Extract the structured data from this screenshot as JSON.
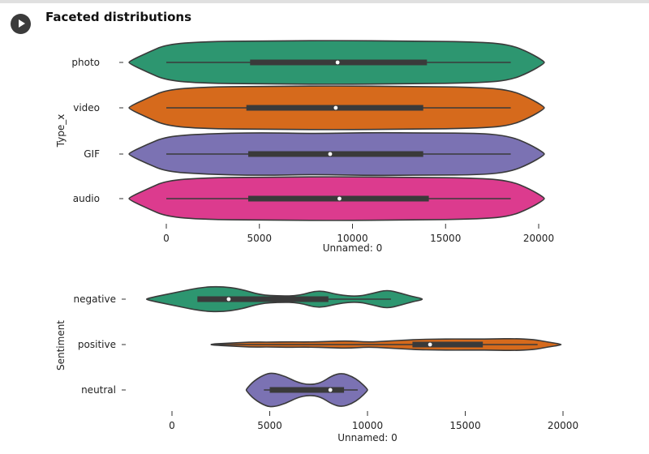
{
  "header": {
    "title": "Faceted distributions",
    "run_icon": "play-icon"
  },
  "chart_data": [
    {
      "type": "violin",
      "orientation": "horizontal",
      "xlabel": "Unnamed: 0",
      "ylabel": "Type_x",
      "xticks": [
        "0",
        "5000",
        "10000",
        "15000",
        "20000"
      ],
      "xtick_values": [
        0,
        5000,
        10000,
        15000,
        20000
      ],
      "xlim": [
        -2500,
        21000
      ],
      "categories": [
        "photo",
        "video",
        "GIF",
        "audio"
      ],
      "colors": [
        "#2d9670",
        "#d66a1c",
        "#7b72b3",
        "#dc3b8e"
      ],
      "stats": [
        {
          "min": 0,
          "q1": 4500,
          "median": 9200,
          "q3": 14000,
          "max": 18500
        },
        {
          "min": 0,
          "q1": 4300,
          "median": 9100,
          "q3": 13800,
          "max": 18500
        },
        {
          "min": 0,
          "q1": 4400,
          "median": 8800,
          "q3": 13800,
          "max": 18500
        },
        {
          "min": 0,
          "q1": 4400,
          "median": 9300,
          "q3": 14100,
          "max": 18500
        }
      ],
      "density_extent": [
        [
          -2000,
          20300
        ],
        [
          -2000,
          20300
        ],
        [
          -2000,
          20300
        ],
        [
          -2000,
          20300
        ]
      ],
      "densities": [
        [
          [
            -2000,
            0.05
          ],
          [
            -1000,
            0.45
          ],
          [
            0,
            0.82
          ],
          [
            2000,
            0.95
          ],
          [
            5000,
            0.98
          ],
          [
            9000,
            1.0
          ],
          [
            13000,
            0.98
          ],
          [
            17000,
            0.93
          ],
          [
            18500,
            0.8
          ],
          [
            19500,
            0.45
          ],
          [
            20300,
            0.05
          ]
        ],
        [
          [
            -2000,
            0.05
          ],
          [
            -1000,
            0.45
          ],
          [
            0,
            0.82
          ],
          [
            2000,
            0.95
          ],
          [
            5000,
            0.98
          ],
          [
            9000,
            1.0
          ],
          [
            13000,
            0.98
          ],
          [
            17000,
            0.93
          ],
          [
            18500,
            0.8
          ],
          [
            19500,
            0.45
          ],
          [
            20300,
            0.05
          ]
        ],
        [
          [
            -2000,
            0.05
          ],
          [
            -1000,
            0.45
          ],
          [
            0,
            0.8
          ],
          [
            2000,
            0.92
          ],
          [
            5000,
            0.98
          ],
          [
            8000,
            0.93
          ],
          [
            11000,
            0.98
          ],
          [
            14000,
            0.96
          ],
          [
            17000,
            0.95
          ],
          [
            18500,
            0.8
          ],
          [
            19500,
            0.45
          ],
          [
            20300,
            0.05
          ]
        ],
        [
          [
            -2000,
            0.05
          ],
          [
            -1000,
            0.45
          ],
          [
            0,
            0.82
          ],
          [
            2000,
            0.95
          ],
          [
            5000,
            0.98
          ],
          [
            9000,
            1.0
          ],
          [
            13000,
            0.98
          ],
          [
            17000,
            0.93
          ],
          [
            18500,
            0.8
          ],
          [
            19500,
            0.45
          ],
          [
            20300,
            0.05
          ]
        ]
      ]
    },
    {
      "type": "violin",
      "orientation": "horizontal",
      "xlabel": "Unnamed: 0",
      "ylabel": "Sentiment",
      "xticks": [
        "0",
        "5000",
        "10000",
        "15000",
        "20000"
      ],
      "xtick_values": [
        0,
        5000,
        10000,
        15000,
        20000
      ],
      "xlim": [
        -2500,
        21000
      ],
      "categories": [
        "negative",
        "positive",
        "neutral"
      ],
      "colors": [
        "#2d9670",
        "#d66a1c",
        "#7b72b3"
      ],
      "stats": [
        {
          "min": 1300,
          "q1": 1300,
          "median": 2900,
          "q3": 8000,
          "max": 11200
        },
        {
          "min": 2000,
          "q1": 12300,
          "median": 13200,
          "q3": 15900,
          "max": 18700
        },
        {
          "min": 4700,
          "q1": 5000,
          "median": 8100,
          "q3": 8800,
          "max": 9500
        }
      ],
      "density_extent": [
        [
          -1300,
          12800
        ],
        [
          2000,
          19900
        ],
        [
          3800,
          10000
        ]
      ],
      "densities": [
        [
          [
            -1300,
            0.04
          ],
          [
            0,
            0.35
          ],
          [
            1500,
            0.7
          ],
          [
            2500,
            0.75
          ],
          [
            3500,
            0.6
          ],
          [
            4500,
            0.25
          ],
          [
            5500,
            0.18
          ],
          [
            6500,
            0.2
          ],
          [
            7500,
            0.55
          ],
          [
            8500,
            0.25
          ],
          [
            9500,
            0.15
          ],
          [
            10300,
            0.35
          ],
          [
            11000,
            0.55
          ],
          [
            11700,
            0.35
          ],
          [
            12300,
            0.15
          ],
          [
            12800,
            0.04
          ]
        ],
        [
          [
            2000,
            0.03
          ],
          [
            3000,
            0.08
          ],
          [
            4000,
            0.15
          ],
          [
            5000,
            0.14
          ],
          [
            6000,
            0.16
          ],
          [
            7000,
            0.15
          ],
          [
            8000,
            0.18
          ],
          [
            9000,
            0.22
          ],
          [
            10000,
            0.14
          ],
          [
            11000,
            0.2
          ],
          [
            12500,
            0.3
          ],
          [
            13500,
            0.32
          ],
          [
            14500,
            0.33
          ],
          [
            15500,
            0.32
          ],
          [
            16500,
            0.33
          ],
          [
            17500,
            0.35
          ],
          [
            18500,
            0.3
          ],
          [
            19200,
            0.15
          ],
          [
            19900,
            0.03
          ]
        ],
        [
          [
            3800,
            0.05
          ],
          [
            4200,
            0.55
          ],
          [
            4800,
            0.95
          ],
          [
            5200,
            1.0
          ],
          [
            5800,
            0.8
          ],
          [
            6400,
            0.45
          ],
          [
            7000,
            0.3
          ],
          [
            7600,
            0.4
          ],
          [
            8200,
            0.85
          ],
          [
            8700,
            1.0
          ],
          [
            9200,
            0.8
          ],
          [
            9600,
            0.5
          ],
          [
            10000,
            0.05
          ]
        ]
      ]
    }
  ]
}
